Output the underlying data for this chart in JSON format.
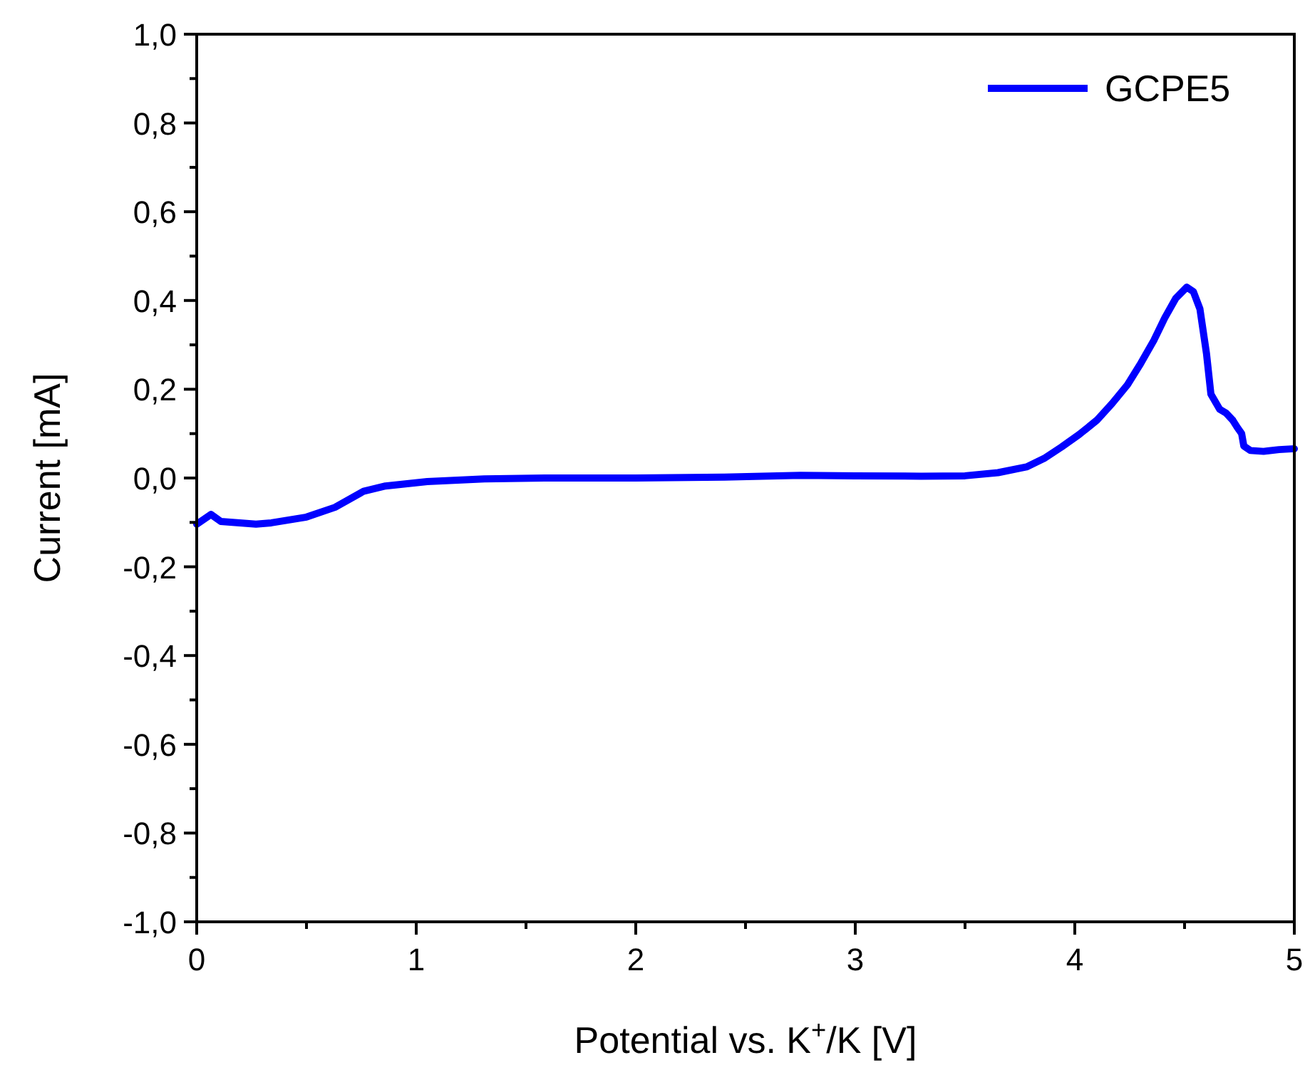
{
  "chart_data": {
    "type": "line",
    "xlabel": "Potential vs. K$^{+}$/K [V]",
    "ylabel": "Current [mA]",
    "xlim": [
      0,
      5
    ],
    "ylim": [
      -1,
      1
    ],
    "xticks": [
      0,
      {
        "value": 0.5,
        "label": null
      },
      1,
      {
        "value": 1.5,
        "label": null
      },
      2,
      {
        "value": 2.5,
        "label": null
      },
      3,
      {
        "value": 3.5,
        "label": null
      },
      4,
      {
        "value": 4.5,
        "label": null
      },
      5
    ],
    "yticks": [
      {
        "value": -1,
        "label": "-1,0"
      },
      {
        "value": -0.9,
        "label": null
      },
      {
        "value": -0.8,
        "label": "-0,8"
      },
      {
        "value": -0.7,
        "label": null
      },
      {
        "value": -0.6,
        "label": "-0,6"
      },
      {
        "value": -0.5,
        "label": null
      },
      {
        "value": -0.4,
        "label": "-0,4"
      },
      {
        "value": -0.3,
        "label": null
      },
      {
        "value": -0.2,
        "label": "-0,2"
      },
      {
        "value": -0.1,
        "label": null
      },
      {
        "value": 0,
        "label": "0,0"
      },
      {
        "value": 0.1,
        "label": null
      },
      {
        "value": 0.2,
        "label": "0,2"
      },
      {
        "value": 0.3,
        "label": null
      },
      {
        "value": 0.4,
        "label": "0,4"
      },
      {
        "value": 0.5,
        "label": null
      },
      {
        "value": 0.6,
        "label": "0,6"
      },
      {
        "value": 0.7,
        "label": null
      },
      {
        "value": 0.8,
        "label": "0,8"
      },
      {
        "value": 0.9,
        "label": null
      },
      {
        "value": 1,
        "label": "1,0"
      }
    ],
    "grid": false,
    "legend": "top right",
    "marker": "none",
    "line_style": "solid",
    "series": [
      {
        "name": "GCPE5",
        "color": "#0000ff",
        "x": [
          0,
          0.065,
          0.11,
          0.27,
          0.34,
          0.5,
          0.63,
          0.76,
          0.86,
          1.05,
          1.31,
          1.6,
          2.0,
          2.4,
          2.75,
          3.0,
          3.3,
          3.5,
          3.65,
          3.78,
          3.86,
          3.94,
          4.02,
          4.1,
          4.17,
          4.24,
          4.3,
          4.36,
          4.41,
          4.46,
          4.51,
          4.54,
          4.57,
          4.6,
          4.62,
          4.66,
          4.69,
          4.72,
          4.74,
          4.76,
          4.77,
          4.8,
          4.86,
          4.93,
          5.0
        ],
        "values": [
          -0.104,
          -0.082,
          -0.098,
          -0.104,
          -0.101,
          -0.088,
          -0.066,
          -0.03,
          -0.018,
          -0.008,
          -0.002,
          0,
          0,
          0.002,
          0.006,
          0.005,
          0.004,
          0.005,
          0.012,
          0.025,
          0.044,
          0.07,
          0.098,
          0.13,
          0.168,
          0.21,
          0.258,
          0.31,
          0.361,
          0.405,
          0.43,
          0.42,
          0.381,
          0.28,
          0.189,
          0.155,
          0.146,
          0.13,
          0.114,
          0.1,
          0.072,
          0.062,
          0.06,
          0.064,
          0.066
        ]
      }
    ]
  }
}
